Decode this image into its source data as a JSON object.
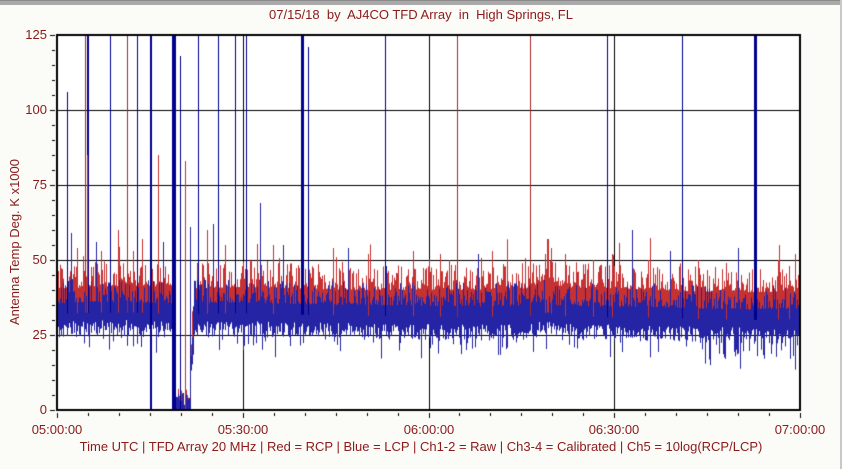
{
  "window": {
    "bg": "#fbfbf8",
    "top_edge_color": "#a9a9a9",
    "right_edge_color": "#c9c9c9"
  },
  "chart_data": {
    "type": "line",
    "title": "07/15/18  by  AJ4CO TFD Array  in  High Springs, FL",
    "footer": "Time UTC | TFD Array 20 MHz | Red = RCP | Blue = LCP | Ch1-2 = Raw | Ch3-4 = Calibrated | Ch5 = 10log(RCP/LCP)",
    "ylabel": "Antenna Temp Deg. K x1000",
    "xlabel": "Time UTC",
    "x_tick_labels": [
      "05:00:00",
      "05:30:00",
      "06:00:00",
      "06:30:00",
      "07:00:00"
    ],
    "y_tick_labels": [
      "0",
      "25",
      "50",
      "75",
      "100",
      "125"
    ],
    "ylim": [
      0,
      125
    ],
    "x_range_minutes": [
      0,
      120
    ],
    "x_minor_step_min": 5,
    "y_minor_step": 5,
    "grid": {
      "h_lines": [
        25,
        50,
        75,
        100
      ],
      "v_lines_min": [
        30,
        60,
        90
      ]
    },
    "legend": {
      "red": "RCP",
      "blue": "LCP"
    },
    "colors": {
      "rcp_red": "#c63131",
      "lcp_blue": "#2424a4",
      "spike_navy": "#00008f",
      "spike_red": "#a52828",
      "text_dark_red": "#8b1a1a",
      "axis_black": "#000000",
      "plot_bg": "#ffffff"
    },
    "noise": {
      "seed": 20180715,
      "red_amp": 8.5,
      "blue_amp": 8,
      "blue_dip": 5.5,
      "dip_prob": 0.12,
      "late_dip_after_min": 103.5,
      "late_dip_prob": 0.3
    },
    "baseline_profile": [
      [
        0,
        39,
        34
      ],
      [
        6,
        39.5,
        34.5
      ],
      [
        12,
        40,
        34.5
      ],
      [
        18.5,
        39.5,
        34
      ],
      [
        22,
        39,
        34
      ],
      [
        30,
        39.5,
        34.3
      ],
      [
        38,
        39,
        33.8
      ],
      [
        48,
        38.5,
        33.5
      ],
      [
        58,
        38.5,
        33.2
      ],
      [
        68,
        38.5,
        33
      ],
      [
        76,
        39,
        33.2
      ],
      [
        79.3,
        42.5,
        34.5
      ],
      [
        81,
        39.5,
        33.2
      ],
      [
        88,
        39,
        33
      ],
      [
        96,
        38.5,
        32.8
      ],
      [
        104,
        38,
        32.3
      ],
      [
        112,
        37.8,
        32
      ],
      [
        120,
        38,
        32.3
      ]
    ],
    "dropout": {
      "start_min": 19.0,
      "end_min": 21.5,
      "recovery_min": 0.6,
      "level": 4
    },
    "spikes": [
      {
        "t": 1.6,
        "peak": 106,
        "color": "blue",
        "w": 1
      },
      {
        "t": 2.2,
        "peak": 59,
        "color": "blue",
        "w": 1
      },
      {
        "t": 3.2,
        "peak": 54,
        "color": "red",
        "w": 1
      },
      {
        "t": 4.6,
        "peak": 125,
        "color": "red",
        "w": 1
      },
      {
        "t": 5.0,
        "peak": 125,
        "color": "blue",
        "w": 2
      },
      {
        "t": 4.8,
        "peak": 85,
        "color": "red",
        "w": 1
      },
      {
        "t": 6.3,
        "peak": 56,
        "color": "blue",
        "w": 1
      },
      {
        "t": 7.1,
        "peak": 53,
        "color": "red",
        "w": 1
      },
      {
        "t": 8.6,
        "peak": 125,
        "color": "blue",
        "w": 1
      },
      {
        "t": 9.8,
        "peak": 60,
        "color": "red",
        "w": 1
      },
      {
        "t": 11.3,
        "peak": 125,
        "color": "red",
        "w": 1
      },
      {
        "t": 12.2,
        "peak": 53,
        "color": "red",
        "w": 1
      },
      {
        "t": 12.9,
        "peak": 125,
        "color": "blue",
        "w": 1
      },
      {
        "t": 13.8,
        "peak": 57,
        "color": "red",
        "w": 1
      },
      {
        "t": 15.2,
        "peak": 125,
        "color": "blue",
        "w": 2,
        "from": 0
      },
      {
        "t": 16.3,
        "peak": 85,
        "color": "red",
        "w": 1
      },
      {
        "t": 17.2,
        "peak": 56,
        "color": "blue",
        "w": 1
      },
      {
        "t": 18.6,
        "peak": 125,
        "color": "red",
        "w": 1,
        "from": 0
      },
      {
        "t": 18.85,
        "peak": 125,
        "color": "blue",
        "w": 4,
        "from": 0
      },
      {
        "t": 19.9,
        "peak": 118,
        "color": "blue",
        "w": 1,
        "from": 0
      },
      {
        "t": 20.7,
        "peak": 83,
        "color": "red",
        "w": 1,
        "from": 0
      },
      {
        "t": 21.4,
        "peak": 61,
        "color": "blue",
        "w": 1,
        "from": 0
      },
      {
        "t": 22.8,
        "peak": 125,
        "color": "blue",
        "w": 1
      },
      {
        "t": 24.2,
        "peak": 60,
        "color": "red",
        "w": 1
      },
      {
        "t": 25.2,
        "peak": 62,
        "color": "blue",
        "w": 1
      },
      {
        "t": 26.0,
        "peak": 125,
        "color": "blue",
        "w": 1
      },
      {
        "t": 27.1,
        "peak": 55,
        "color": "red",
        "w": 1
      },
      {
        "t": 28.7,
        "peak": 125,
        "color": "blue",
        "w": 1
      },
      {
        "t": 30.5,
        "peak": 125,
        "color": "blue",
        "w": 1
      },
      {
        "t": 32.8,
        "peak": 69,
        "color": "blue",
        "w": 1
      },
      {
        "t": 34.9,
        "peak": 55,
        "color": "red",
        "w": 1
      },
      {
        "t": 36.5,
        "peak": 55,
        "color": "blue",
        "w": 1
      },
      {
        "t": 39.6,
        "peak": 125,
        "color": "blue",
        "w": 3
      },
      {
        "t": 40.5,
        "peak": 121,
        "color": "blue",
        "w": 1
      },
      {
        "t": 44.5,
        "peak": 54,
        "color": "red",
        "w": 1
      },
      {
        "t": 47.0,
        "peak": 54,
        "color": "blue",
        "w": 1
      },
      {
        "t": 50.2,
        "peak": 52,
        "color": "red",
        "w": 1
      },
      {
        "t": 53.0,
        "peak": 125,
        "color": "blue",
        "w": 1
      },
      {
        "t": 53.2,
        "peak": 48,
        "color": "blue",
        "w": 1
      },
      {
        "t": 57.5,
        "peak": 53,
        "color": "red",
        "w": 1
      },
      {
        "t": 61.8,
        "peak": 52,
        "color": "red",
        "w": 1
      },
      {
        "t": 64.6,
        "peak": 125,
        "color": "red",
        "w": 1
      },
      {
        "t": 68.0,
        "peak": 52,
        "color": "blue",
        "w": 1
      },
      {
        "t": 70.3,
        "peak": 53,
        "color": "red",
        "w": 1
      },
      {
        "t": 76.4,
        "peak": 125,
        "color": "red",
        "w": 1
      },
      {
        "t": 78.8,
        "peak": 52,
        "color": "red",
        "w": 1
      },
      {
        "t": 79.3,
        "peak": 57,
        "color": "red",
        "w": 2
      },
      {
        "t": 79.8,
        "peak": 54,
        "color": "red",
        "w": 1
      },
      {
        "t": 82.0,
        "peak": 52,
        "color": "red",
        "w": 1
      },
      {
        "t": 86.5,
        "peak": 50,
        "color": "red",
        "w": 1
      },
      {
        "t": 88.8,
        "peak": 125,
        "color": "blue",
        "w": 1
      },
      {
        "t": 89.6,
        "peak": 52,
        "color": "red",
        "w": 1
      },
      {
        "t": 92.9,
        "peak": 60,
        "color": "blue",
        "w": 1
      },
      {
        "t": 95.5,
        "peak": 50,
        "color": "red",
        "w": 1
      },
      {
        "t": 99.0,
        "peak": 53,
        "color": "blue",
        "w": 1
      },
      {
        "t": 101.0,
        "peak": 125,
        "color": "blue",
        "w": 1
      },
      {
        "t": 103.5,
        "peak": 50,
        "color": "red",
        "w": 1
      },
      {
        "t": 108.0,
        "peak": 49,
        "color": "red",
        "w": 1
      },
      {
        "t": 110.0,
        "peak": 54,
        "color": "blue",
        "w": 1
      },
      {
        "t": 112.7,
        "peak": 125,
        "color": "blue",
        "w": 3
      },
      {
        "t": 116.5,
        "peak": 50,
        "color": "red",
        "w": 1
      },
      {
        "t": 118.3,
        "peak": 48,
        "color": "red",
        "w": 1
      }
    ]
  }
}
